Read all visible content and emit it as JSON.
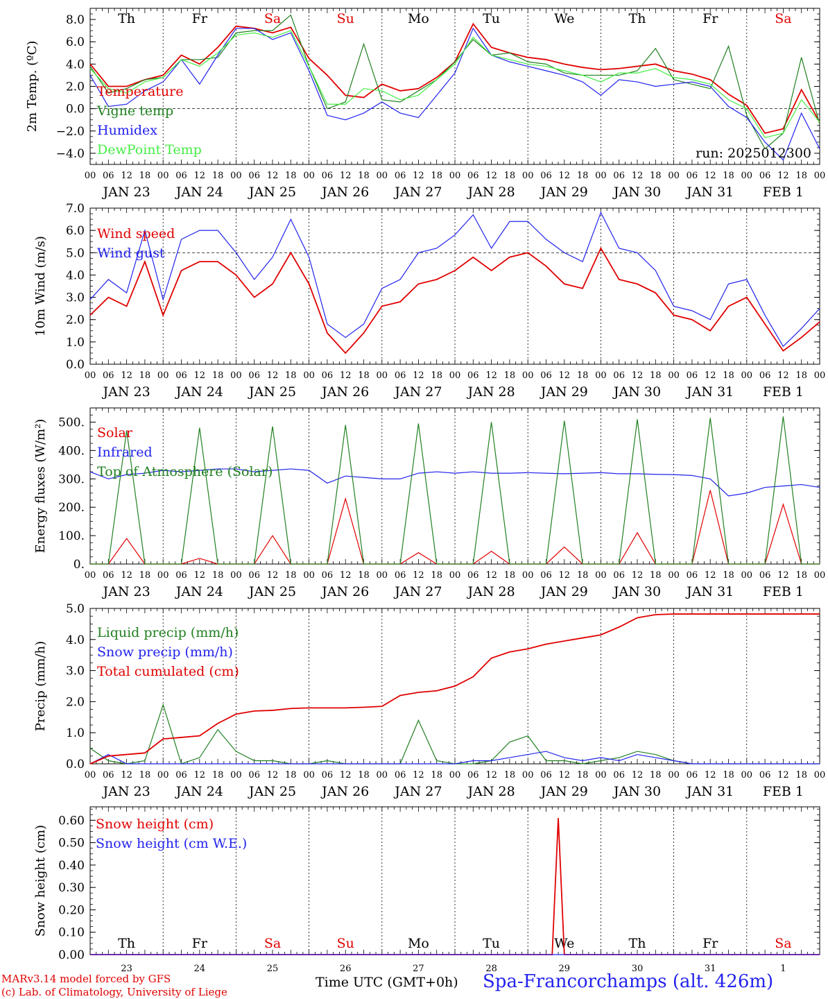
{
  "footer": {
    "credits_line1": "MARv3.14 model forced by GFS",
    "credits_line2": "(c) Lab. of Climatology, University of Liege",
    "time_axis_label": "Time UTC (GMT+0h)",
    "station": "Spa-Francorchamps (alt. 426m)"
  },
  "shared_axis": {
    "hour_ticks": [
      "00",
      "06",
      "12",
      "18"
    ],
    "final_hour": "00",
    "dates": [
      "JAN 23",
      "JAN 24",
      "JAN 25",
      "JAN 26",
      "JAN 27",
      "JAN 28",
      "JAN 29",
      "JAN 30",
      "JAN 31",
      "FEB 1"
    ],
    "day_numbers": [
      "23",
      "24",
      "25",
      "26",
      "27",
      "28",
      "29",
      "30",
      "31",
      "1"
    ],
    "weekdays": [
      "Th",
      "Fr",
      "Sa",
      "Su",
      "Mo",
      "Tu",
      "We",
      "Th",
      "Fr",
      "Sa"
    ],
    "weekday_colors": [
      "#000000",
      "#000000",
      "#e00000",
      "#e00000",
      "#000000",
      "#000000",
      "#000000",
      "#000000",
      "#000000",
      "#e00000"
    ],
    "x_range_hours": [
      0,
      240
    ]
  },
  "chart_data": [
    {
      "type": "line",
      "ylabel": "2m Temp. (ºC)",
      "ylim": [
        -5,
        9
      ],
      "yticks": [
        8,
        6,
        4,
        2,
        0,
        -2,
        -4
      ],
      "ytick_labels": [
        "8.0",
        "6.0",
        "4.0",
        "2.0",
        "0.0",
        "−2.0",
        "−4.0"
      ],
      "reference_line": 0,
      "annotation": "run: 2025012300",
      "x": [
        0,
        6,
        12,
        18,
        24,
        30,
        36,
        42,
        48,
        54,
        60,
        66,
        72,
        78,
        84,
        90,
        96,
        102,
        108,
        114,
        120,
        126,
        132,
        138,
        144,
        150,
        156,
        162,
        168,
        174,
        180,
        186,
        192,
        198,
        204,
        210,
        216,
        222,
        228,
        234,
        240
      ],
      "series": [
        {
          "name": "Temperature",
          "color": "#e00000",
          "values": [
            4.0,
            2.0,
            2.0,
            2.6,
            3.0,
            4.8,
            4.0,
            5.5,
            7.4,
            7.2,
            6.8,
            7.3,
            4.5,
            3.0,
            1.2,
            1.0,
            2.2,
            1.6,
            1.8,
            2.8,
            4.2,
            7.6,
            5.5,
            5.0,
            4.6,
            4.4,
            4.0,
            3.7,
            3.5,
            3.6,
            3.8,
            4.0,
            3.4,
            3.1,
            2.6,
            1.3,
            0.3,
            -2.2,
            -1.8,
            1.7,
            -1.2
          ]
        },
        {
          "name": "Vigne temp",
          "color": "#208020",
          "values": [
            3.8,
            1.4,
            1.8,
            2.6,
            2.8,
            4.4,
            4.4,
            4.6,
            6.8,
            7.0,
            7.0,
            8.4,
            3.8,
            0.0,
            0.6,
            5.8,
            0.8,
            0.6,
            1.6,
            2.6,
            4.2,
            6.2,
            4.8,
            5.0,
            4.2,
            4.0,
            3.2,
            3.0,
            3.0,
            3.0,
            3.4,
            5.4,
            2.6,
            2.2,
            1.8,
            5.6,
            -0.6,
            -3.6,
            -2.2,
            4.6,
            -1.4
          ]
        },
        {
          "name": "Humidex",
          "color": "#2222ee",
          "values": [
            3.0,
            0.2,
            0.4,
            1.6,
            2.4,
            4.4,
            2.2,
            4.8,
            7.2,
            7.2,
            6.2,
            6.8,
            3.4,
            -0.6,
            -1.0,
            -0.4,
            0.6,
            -0.4,
            -0.8,
            1.2,
            3.2,
            7.2,
            4.8,
            4.2,
            3.8,
            3.4,
            3.0,
            2.4,
            1.2,
            2.6,
            2.4,
            2.0,
            2.2,
            2.4,
            2.0,
            0.2,
            -0.8,
            -3.0,
            -4.6,
            -0.4,
            -3.6
          ]
        },
        {
          "name": "DewPoint Temp",
          "color": "#44ee44",
          "values": [
            3.6,
            1.8,
            1.4,
            2.4,
            2.8,
            4.4,
            3.8,
            5.0,
            6.6,
            6.8,
            6.4,
            7.0,
            3.8,
            0.4,
            0.4,
            1.8,
            1.6,
            0.8,
            1.2,
            2.6,
            4.0,
            6.4,
            4.8,
            4.4,
            4.0,
            3.8,
            3.4,
            3.0,
            2.4,
            3.2,
            3.2,
            3.6,
            2.8,
            2.6,
            2.2,
            0.8,
            0.0,
            -2.6,
            -2.2,
            0.8,
            -1.2
          ]
        }
      ]
    },
    {
      "type": "line",
      "ylabel": "10m Wind (m/s)",
      "ylim": [
        0,
        7
      ],
      "yticks": [
        7,
        6,
        5,
        4,
        3,
        2,
        1,
        0
      ],
      "ytick_labels": [
        "7.0",
        "6.0",
        "5.0",
        "4.0",
        "3.0",
        "2.0",
        "1.0",
        "0.0"
      ],
      "reference_line": 5,
      "x": [
        0,
        6,
        12,
        18,
        24,
        30,
        36,
        42,
        48,
        54,
        60,
        66,
        72,
        78,
        84,
        90,
        96,
        102,
        108,
        114,
        120,
        126,
        132,
        138,
        144,
        150,
        156,
        162,
        168,
        174,
        180,
        186,
        192,
        198,
        204,
        210,
        216,
        222,
        228,
        234,
        240
      ],
      "series": [
        {
          "name": "Wind speed",
          "color": "#e00000",
          "values": [
            2.2,
            3.0,
            2.6,
            4.6,
            2.2,
            4.2,
            4.6,
            4.6,
            4.0,
            3.0,
            3.6,
            5.0,
            3.6,
            1.4,
            0.5,
            1.4,
            2.6,
            2.8,
            3.6,
            3.8,
            4.2,
            4.8,
            4.2,
            4.8,
            5.0,
            4.4,
            3.6,
            3.4,
            5.2,
            3.8,
            3.6,
            3.2,
            2.2,
            2.0,
            1.5,
            2.6,
            3.0,
            1.8,
            0.6,
            1.2,
            1.9
          ]
        },
        {
          "name": "Wind gust",
          "color": "#2222ee",
          "values": [
            2.9,
            3.8,
            3.2,
            6.0,
            2.9,
            5.6,
            6.0,
            6.0,
            5.0,
            3.8,
            4.8,
            6.5,
            4.8,
            1.8,
            1.2,
            1.8,
            3.4,
            3.8,
            5.0,
            5.2,
            5.8,
            6.7,
            5.2,
            6.4,
            6.4,
            5.6,
            5.0,
            4.6,
            6.8,
            5.2,
            5.0,
            4.2,
            2.6,
            2.4,
            2.0,
            3.6,
            3.8,
            2.2,
            0.8,
            1.6,
            2.5
          ]
        }
      ]
    },
    {
      "type": "line",
      "ylabel": "Energy fluxes (W/m²)",
      "ylim": [
        0,
        550
      ],
      "yticks": [
        500,
        400,
        300,
        200,
        100,
        0
      ],
      "ytick_labels": [
        "500.",
        "400.",
        "300.",
        "200.",
        "100.",
        "0."
      ],
      "x": [
        0,
        6,
        12,
        18,
        24,
        30,
        36,
        42,
        48,
        54,
        60,
        66,
        72,
        78,
        84,
        90,
        96,
        102,
        108,
        114,
        120,
        126,
        132,
        138,
        144,
        150,
        156,
        162,
        168,
        174,
        180,
        186,
        192,
        198,
        204,
        210,
        216,
        222,
        228,
        234,
        240
      ],
      "series": [
        {
          "name": "Solar",
          "color": "#e00000",
          "values": [
            0,
            0,
            90,
            0,
            0,
            0,
            20,
            0,
            0,
            0,
            100,
            0,
            0,
            0,
            230,
            0,
            0,
            0,
            40,
            0,
            0,
            0,
            45,
            0,
            0,
            0,
            60,
            0,
            0,
            0,
            110,
            0,
            0,
            0,
            260,
            0,
            0,
            0,
            210,
            0,
            0
          ]
        },
        {
          "name": "Infrared",
          "color": "#2222ee",
          "values": [
            325,
            300,
            315,
            320,
            330,
            325,
            330,
            335,
            335,
            325,
            330,
            335,
            330,
            285,
            310,
            305,
            300,
            300,
            320,
            325,
            320,
            325,
            320,
            320,
            322,
            320,
            318,
            320,
            322,
            318,
            318,
            316,
            315,
            312,
            300,
            240,
            250,
            270,
            275,
            280,
            270
          ]
        },
        {
          "name": "Top of Atmosphere (Solar)",
          "color": "#208020",
          "values": [
            0,
            0,
            470,
            0,
            0,
            0,
            480,
            0,
            0,
            0,
            485,
            0,
            0,
            0,
            490,
            0,
            0,
            0,
            495,
            0,
            0,
            0,
            500,
            0,
            0,
            0,
            505,
            0,
            0,
            0,
            510,
            0,
            0,
            0,
            515,
            0,
            0,
            0,
            520,
            0,
            0
          ]
        }
      ]
    },
    {
      "type": "line",
      "ylabel": "Precip (mm/h)",
      "ylim": [
        0,
        5
      ],
      "yticks": [
        5,
        4,
        3,
        2,
        1,
        0
      ],
      "ytick_labels": [
        "5.0",
        "4.0",
        "3.0",
        "2.0",
        "1.0",
        "0.0"
      ],
      "x": [
        0,
        6,
        12,
        18,
        24,
        30,
        36,
        42,
        48,
        54,
        60,
        66,
        72,
        78,
        84,
        90,
        96,
        102,
        108,
        114,
        120,
        126,
        132,
        138,
        144,
        150,
        156,
        162,
        168,
        174,
        180,
        186,
        192,
        198,
        204,
        210,
        216,
        222,
        228,
        234,
        240
      ],
      "series": [
        {
          "name": "Liquid precip (mm/h)",
          "color": "#208020",
          "values": [
            0.5,
            0.1,
            0.0,
            0.1,
            1.9,
            0.0,
            0.2,
            1.1,
            0.4,
            0.1,
            0.1,
            0.0,
            0.0,
            0.1,
            0.0,
            0.0,
            0.0,
            0.0,
            1.4,
            0.1,
            0.0,
            0.0,
            0.1,
            0.7,
            0.9,
            0.1,
            0.1,
            0.0,
            0.1,
            0.2,
            0.4,
            0.3,
            0.1,
            0.0,
            0.0,
            0.0,
            0.0,
            0.0,
            0.0,
            0.0,
            0.0
          ]
        },
        {
          "name": "Snow precip (mm/h)",
          "color": "#2222ee",
          "values": [
            0.0,
            0.3,
            0.0,
            0.0,
            0.0,
            0.0,
            0.0,
            0.0,
            0.0,
            0.0,
            0.0,
            0.0,
            0.0,
            0.0,
            0.0,
            0.0,
            0.0,
            0.0,
            0.0,
            0.0,
            0.0,
            0.1,
            0.1,
            0.2,
            0.3,
            0.4,
            0.2,
            0.1,
            0.2,
            0.1,
            0.3,
            0.2,
            0.1,
            0.0,
            0.0,
            0.0,
            0.0,
            0.0,
            0.0,
            0.0,
            0.0
          ]
        },
        {
          "name": "Total cumulated (cm)",
          "color": "#e00000",
          "values": [
            0.0,
            0.25,
            0.3,
            0.35,
            0.8,
            0.85,
            0.9,
            1.3,
            1.6,
            1.7,
            1.72,
            1.78,
            1.8,
            1.8,
            1.8,
            1.82,
            1.85,
            2.2,
            2.3,
            2.35,
            2.5,
            2.8,
            3.4,
            3.6,
            3.7,
            3.85,
            3.95,
            4.05,
            4.15,
            4.4,
            4.7,
            4.8,
            4.82,
            4.82,
            4.82,
            4.82,
            4.82,
            4.82,
            4.82,
            4.82,
            4.82
          ]
        }
      ]
    },
    {
      "type": "line",
      "ylabel": "Snow height (cm)",
      "ylim": [
        0,
        0.66
      ],
      "yticks": [
        0.6,
        0.5,
        0.4,
        0.3,
        0.2,
        0.1,
        0
      ],
      "ytick_labels": [
        "0.60",
        "0.50",
        "0.40",
        "0.30",
        "0.20",
        "0.10",
        "0.00"
      ],
      "x": [
        0,
        150,
        152,
        154,
        156,
        240
      ],
      "series": [
        {
          "name": "Snow height (cm)",
          "color": "#e00000",
          "values": [
            0,
            0,
            0,
            0.61,
            0,
            0
          ]
        },
        {
          "name": "Snow height (cm W.E.)",
          "color": "#2222ee",
          "values": [
            0,
            0,
            0,
            0,
            0,
            0
          ]
        }
      ]
    }
  ]
}
